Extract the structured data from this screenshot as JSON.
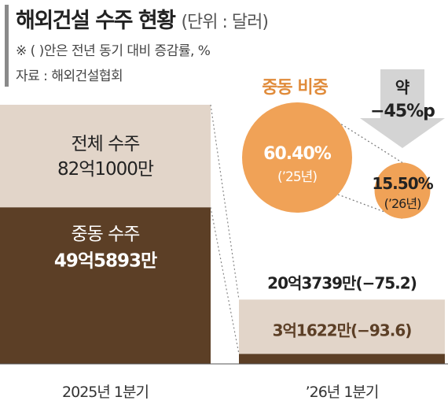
{
  "header": {
    "title": "해외건설 수주 현황",
    "unit": "(단위 : 달러)",
    "note": "※ (  )안은 전년 동기 대비 증감률, %",
    "source": "자료 : 해외건설협회"
  },
  "chart_data": {
    "type": "bar",
    "categories": [
      "2025년 1분기",
      "’26년 1분기"
    ],
    "series": [
      {
        "name": "중동 수주",
        "values": [
          49.5893,
          3.1622
        ]
      },
      {
        "name": "전체 수주",
        "values": [
          82.1,
          20.3739
        ]
      }
    ],
    "unit": "억 달러",
    "labels": {
      "total_2025_name": "전체 수주",
      "total_2025_value": "82억1000만",
      "me_2025_name": "중동 수주",
      "me_2025_value": "49억5893만",
      "total_2026": "20억3739만(−75.2)",
      "me_2026": "3억1622만(−93.6)"
    },
    "middle_east_share": {
      "title": "중동 비중",
      "values": [
        60.4,
        15.5
      ],
      "labels": [
        "60.40%",
        "15.50%"
      ],
      "years": [
        "(’25년)",
        "(’26년)"
      ],
      "change_label_1": "약",
      "change_label_2": "−45%p"
    },
    "ylim": [
      0,
      82.1
    ]
  },
  "colors": {
    "total": "#e2d5c9",
    "middle_east": "#5c3f26",
    "circle": "#f0a257",
    "share_text": "#e08b3a",
    "arrow": "#d4d4d4"
  }
}
